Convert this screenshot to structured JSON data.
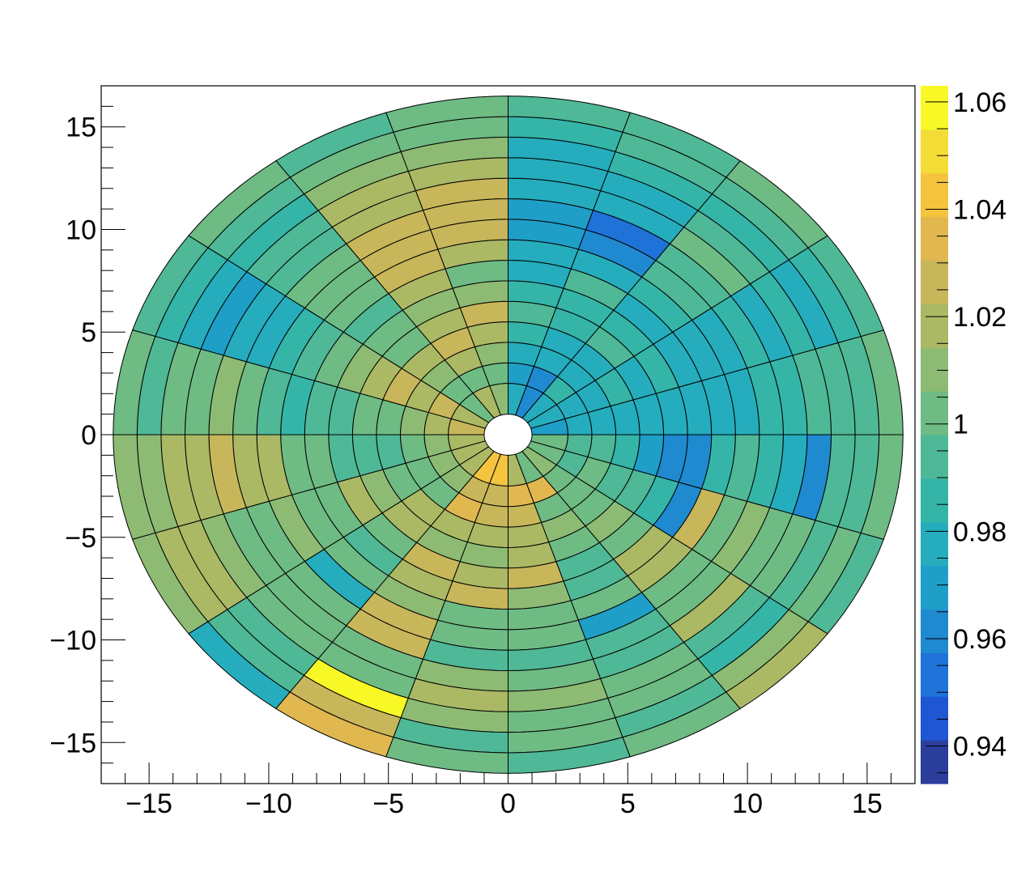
{
  "chart_data": {
    "type": "polar-heatmap",
    "xlim": [
      -17,
      17
    ],
    "ylim": [
      -17,
      17
    ],
    "x_ticks": [
      {
        "value": -15,
        "label": "−15"
      },
      {
        "value": -10,
        "label": "−10"
      },
      {
        "value": -5,
        "label": "−5"
      },
      {
        "value": 0,
        "label": "0"
      },
      {
        "value": 5,
        "label": "5"
      },
      {
        "value": 10,
        "label": "10"
      },
      {
        "value": 15,
        "label": "15"
      }
    ],
    "y_ticks": [
      {
        "value": 15,
        "label": "15"
      },
      {
        "value": 10,
        "label": "10"
      },
      {
        "value": 5,
        "label": "5"
      },
      {
        "value": 0,
        "label": "0"
      },
      {
        "value": -5,
        "label": "−5"
      },
      {
        "value": -10,
        "label": "−10"
      },
      {
        "value": -15,
        "label": "−15"
      }
    ],
    "r_edges": [
      1,
      2.5,
      3.5,
      4.5,
      5.5,
      6.5,
      7.5,
      8.5,
      9.5,
      10.5,
      11.5,
      12.5,
      13.5,
      14.5,
      15.5,
      16.5
    ],
    "phi_edges_deg": [
      0,
      18,
      36,
      54,
      72,
      90,
      108,
      126,
      144,
      162,
      180,
      198,
      216,
      234,
      252,
      270,
      288,
      306,
      324,
      342,
      360
    ],
    "values_by_sector": [
      [
        0.97,
        0.975,
        0.98,
        0.975,
        0.975,
        0.975,
        0.98,
        0.98,
        0.975,
        0.985,
        0.985,
        0.99,
        0.99,
        0.995,
        1.0
      ],
      [
        0.975,
        0.975,
        0.98,
        0.985,
        0.98,
        0.985,
        0.975,
        0.98,
        0.98,
        0.985,
        0.98,
        0.985,
        0.98,
        0.985,
        0.995
      ],
      [
        0.975,
        0.985,
        0.98,
        0.975,
        0.99,
        0.985,
        0.98,
        0.985,
        0.99,
        0.995,
        1.0,
        0.99,
        0.985,
        0.99,
        1.0
      ],
      [
        0.96,
        0.965,
        0.975,
        0.98,
        0.985,
        0.985,
        0.99,
        0.98,
        0.965,
        0.955,
        0.975,
        0.98,
        0.985,
        0.99,
        0.995
      ],
      [
        0.975,
        0.97,
        0.98,
        0.985,
        0.99,
        0.985,
        0.98,
        0.975,
        0.97,
        0.97,
        0.975,
        0.98,
        0.98,
        0.985,
        0.99
      ],
      [
        1.01,
        1.005,
        1.01,
        1.02,
        1.025,
        1.01,
        1.005,
        1.02,
        1.03,
        1.03,
        1.03,
        1.015,
        1.01,
        1.005,
        1.0
      ],
      [
        1.015,
        1.005,
        1.02,
        1.025,
        1.015,
        1.01,
        1.02,
        1.025,
        1.03,
        1.025,
        1.02,
        1.015,
        1.01,
        1.005,
        0.995
      ],
      [
        1.005,
        1.0,
        1.01,
        1.015,
        1.005,
        1.0,
        0.995,
        1.0,
        1.005,
        1.0,
        0.995,
        0.99,
        0.985,
        0.99,
        1.0
      ],
      [
        1.02,
        1.025,
        1.015,
        1.025,
        1.02,
        1.01,
        1.0,
        0.99,
        0.985,
        0.98,
        0.975,
        0.97,
        0.98,
        0.985,
        0.99
      ],
      [
        1.025,
        1.015,
        1.01,
        1.005,
        1.0,
        0.995,
        0.99,
        0.985,
        0.99,
        1.005,
        1.01,
        1.005,
        1.0,
        0.995,
        1.0
      ],
      [
        1.02,
        1.01,
        1.0,
        0.995,
        0.99,
        0.995,
        1.0,
        1.005,
        1.015,
        1.02,
        1.025,
        1.02,
        1.015,
        1.01,
        1.01
      ],
      [
        1.015,
        1.01,
        1.0,
        1.005,
        1.01,
        1.015,
        1.005,
        1.0,
        1.01,
        1.005,
        1.0,
        1.01,
        1.02,
        1.015,
        1.01
      ],
      [
        1.02,
        1.01,
        1.005,
        1.015,
        1.02,
        1.0,
        0.995,
        1.005,
        0.98,
        1.0,
        1.005,
        1.0,
        0.995,
        0.99,
        0.98
      ],
      [
        1.04,
        1.025,
        1.035,
        1.02,
        1.01,
        1.025,
        1.015,
        1.01,
        1.03,
        1.025,
        1.005,
        1.0,
        1.06,
        1.025,
        1.035
      ],
      [
        1.045,
        1.025,
        1.03,
        1.015,
        1.01,
        1.02,
        1.025,
        1.005,
        1.0,
        0.995,
        1.01,
        1.015,
        1.01,
        0.995,
        1.005
      ],
      [
        1.015,
        1.035,
        1.025,
        1.02,
        1.015,
        1.03,
        1.01,
        1.005,
        1.0,
        0.995,
        1.005,
        1.01,
        1.005,
        1.0,
        0.995
      ],
      [
        1.0,
        1.035,
        1.005,
        1.01,
        1.0,
        0.995,
        0.99,
        1.0,
        0.97,
        0.99,
        0.995,
        1.005,
        1.0,
        0.995,
        1.0
      ],
      [
        1.01,
        1.005,
        1.0,
        1.005,
        1.01,
        1.005,
        1.02,
        1.015,
        1.0,
        1.005,
        1.015,
        0.99,
        0.985,
        1.01,
        1.015
      ],
      [
        1.005,
        0.995,
        1.0,
        0.995,
        0.99,
        0.985,
        0.96,
        1.03,
        1.005,
        1.01,
        1.005,
        1.0,
        0.995,
        1.005,
        0.995
      ],
      [
        1.0,
        0.995,
        0.99,
        0.985,
        0.97,
        0.965,
        0.965,
        0.985,
        0.99,
        0.985,
        0.98,
        0.965,
        0.99,
        0.995,
        1.0
      ]
    ],
    "colorbar": {
      "min": 0.933,
      "max": 1.063,
      "ticks": [
        {
          "value": 0.94,
          "label": "0.94"
        },
        {
          "value": 0.96,
          "label": "0.96"
        },
        {
          "value": 0.98,
          "label": "0.98"
        },
        {
          "value": 1.0,
          "label": "1"
        },
        {
          "value": 1.02,
          "label": "1.02"
        },
        {
          "value": 1.04,
          "label": "1.04"
        },
        {
          "value": 1.06,
          "label": "1.06"
        }
      ]
    },
    "palette": [
      "#2c3e9c",
      "#1e56d4",
      "#1f72d8",
      "#1f8ad0",
      "#1f9ec8",
      "#25adbd",
      "#34b5a8",
      "#4fb897",
      "#6ebb84",
      "#8dbb74",
      "#abb965",
      "#c8b65a",
      "#e1b750",
      "#f4c43f",
      "#f3dc35",
      "#f8f826"
    ],
    "title": "",
    "xlabel": "",
    "ylabel": ""
  }
}
